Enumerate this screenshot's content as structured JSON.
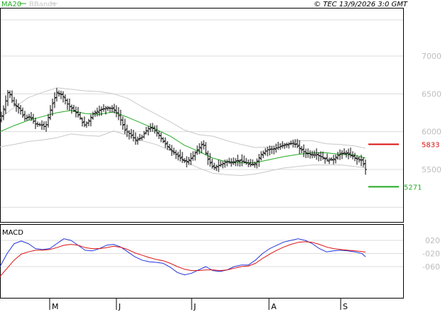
{
  "header": {
    "legend_ma": "MA20",
    "legend_bbands": "BBands",
    "copyright": "© TEC 13/9/2026 3:0 GMT"
  },
  "macd_panel": {
    "label": "MACD"
  },
  "colors": {
    "price_bars": "#000000",
    "ma20": "#22aa22",
    "bbands": "#c8c8c8",
    "macd": "#2233dd",
    "signal": "#dd1111",
    "resistance": "#dd1111",
    "support": "#22aa22",
    "grid": "#dcdcdc"
  },
  "chart_data": [
    {
      "type": "ohlc",
      "title": "",
      "x": [
        "M",
        "J",
        "J",
        "A",
        "S"
      ],
      "y_ticks": [
        "7000",
        "6500",
        "6000",
        "5500"
      ],
      "ylim": [
        5000,
        7250
      ],
      "grid": true,
      "indicators": [
        "MA20",
        "BBands"
      ],
      "levels": [
        {
          "name": "resistance",
          "label": "5833",
          "value": 5833
        },
        {
          "name": "support",
          "label": "5271",
          "value": 5271
        }
      ],
      "price_path": [
        [
          0,
          6150
        ],
        [
          5,
          6300
        ],
        [
          12,
          6550
        ],
        [
          18,
          6380
        ],
        [
          28,
          6300
        ],
        [
          34,
          6170
        ],
        [
          42,
          6200
        ],
        [
          50,
          6100
        ],
        [
          57,
          6090
        ],
        [
          64,
          6060
        ],
        [
          72,
          6320
        ],
        [
          80,
          6520
        ],
        [
          88,
          6480
        ],
        [
          96,
          6350
        ],
        [
          104,
          6280
        ],
        [
          112,
          6200
        ],
        [
          118,
          6080
        ],
        [
          124,
          6130
        ],
        [
          132,
          6250
        ],
        [
          140,
          6280
        ],
        [
          150,
          6320
        ],
        [
          160,
          6300
        ],
        [
          168,
          6200
        ],
        [
          176,
          6020
        ],
        [
          184,
          5960
        ],
        [
          192,
          5880
        ],
        [
          200,
          5930
        ],
        [
          208,
          6040
        ],
        [
          214,
          6050
        ],
        [
          222,
          5980
        ],
        [
          230,
          5870
        ],
        [
          238,
          5780
        ],
        [
          246,
          5720
        ],
        [
          254,
          5650
        ],
        [
          262,
          5600
        ],
        [
          270,
          5650
        ],
        [
          278,
          5760
        ],
        [
          286,
          5850
        ],
        [
          292,
          5650
        ],
        [
          300,
          5520
        ],
        [
          310,
          5560
        ],
        [
          318,
          5600
        ],
        [
          328,
          5600
        ],
        [
          336,
          5620
        ],
        [
          344,
          5600
        ],
        [
          352,
          5560
        ],
        [
          360,
          5580
        ],
        [
          368,
          5700
        ],
        [
          376,
          5760
        ],
        [
          384,
          5770
        ],
        [
          394,
          5800
        ],
        [
          404,
          5830
        ],
        [
          414,
          5850
        ],
        [
          422,
          5780
        ],
        [
          430,
          5720
        ],
        [
          438,
          5700
        ],
        [
          446,
          5700
        ],
        [
          454,
          5660
        ],
        [
          462,
          5620
        ],
        [
          470,
          5640
        ],
        [
          478,
          5700
        ],
        [
          486,
          5720
        ],
        [
          494,
          5690
        ],
        [
          502,
          5640
        ],
        [
          510,
          5620
        ],
        [
          515,
          5500
        ]
      ],
      "ma20_path": [
        [
          0,
          6000
        ],
        [
          20,
          6080
        ],
        [
          40,
          6150
        ],
        [
          60,
          6200
        ],
        [
          80,
          6250
        ],
        [
          100,
          6280
        ],
        [
          120,
          6240
        ],
        [
          140,
          6230
        ],
        [
          160,
          6260
        ],
        [
          180,
          6190
        ],
        [
          200,
          6110
        ],
        [
          220,
          6030
        ],
        [
          240,
          5940
        ],
        [
          260,
          5820
        ],
        [
          280,
          5740
        ],
        [
          300,
          5650
        ],
        [
          320,
          5600
        ],
        [
          340,
          5590
        ],
        [
          360,
          5590
        ],
        [
          380,
          5630
        ],
        [
          400,
          5670
        ],
        [
          420,
          5700
        ],
        [
          440,
          5720
        ],
        [
          460,
          5720
        ],
        [
          480,
          5700
        ],
        [
          500,
          5690
        ],
        [
          515,
          5650
        ]
      ],
      "bband_upper_path": [
        [
          0,
          6180
        ],
        [
          20,
          6320
        ],
        [
          40,
          6450
        ],
        [
          60,
          6520
        ],
        [
          80,
          6580
        ],
        [
          100,
          6560
        ],
        [
          120,
          6540
        ],
        [
          140,
          6530
        ],
        [
          160,
          6500
        ],
        [
          180,
          6440
        ],
        [
          200,
          6330
        ],
        [
          220,
          6230
        ],
        [
          240,
          6130
        ],
        [
          260,
          6020
        ],
        [
          280,
          5960
        ],
        [
          300,
          5940
        ],
        [
          320,
          5880
        ],
        [
          340,
          5830
        ],
        [
          360,
          5790
        ],
        [
          380,
          5800
        ],
        [
          400,
          5840
        ],
        [
          420,
          5880
        ],
        [
          440,
          5880
        ],
        [
          460,
          5840
        ],
        [
          480,
          5830
        ],
        [
          500,
          5810
        ],
        [
          515,
          5780
        ]
      ],
      "bband_lower_path": [
        [
          0,
          5800
        ],
        [
          20,
          5830
        ],
        [
          40,
          5870
        ],
        [
          60,
          5890
        ],
        [
          80,
          5920
        ],
        [
          100,
          5970
        ],
        [
          120,
          5950
        ],
        [
          140,
          5940
        ],
        [
          160,
          6010
        ],
        [
          180,
          5950
        ],
        [
          200,
          5880
        ],
        [
          220,
          5830
        ],
        [
          240,
          5750
        ],
        [
          260,
          5610
        ],
        [
          280,
          5520
        ],
        [
          300,
          5450
        ],
        [
          320,
          5430
        ],
        [
          340,
          5420
        ],
        [
          360,
          5440
        ],
        [
          380,
          5480
        ],
        [
          400,
          5520
        ],
        [
          420,
          5540
        ],
        [
          440,
          5560
        ],
        [
          460,
          5560
        ],
        [
          480,
          5560
        ],
        [
          500,
          5540
        ],
        [
          515,
          5520
        ]
      ]
    },
    {
      "type": "line",
      "title": "MACD",
      "y_ticks": [
        "020",
        "-020",
        "-060"
      ],
      "ylim": [
        -100,
        60
      ],
      "grid": true,
      "series": [
        {
          "name": "",
          "values": [
            [
              0,
              -60
            ],
            [
              10,
              -20
            ],
            [
              20,
              10
            ],
            [
              30,
              18
            ],
            [
              40,
              10
            ],
            [
              50,
              -5
            ],
            [
              60,
              -8
            ],
            [
              70,
              -5
            ],
            [
              80,
              10
            ],
            [
              90,
              25
            ],
            [
              100,
              20
            ],
            [
              110,
              5
            ],
            [
              120,
              -10
            ],
            [
              130,
              -12
            ],
            [
              140,
              -5
            ],
            [
              150,
              5
            ],
            [
              160,
              8
            ],
            [
              170,
              0
            ],
            [
              180,
              -15
            ],
            [
              190,
              -30
            ],
            [
              200,
              -40
            ],
            [
              210,
              -45
            ],
            [
              220,
              -47
            ],
            [
              230,
              -50
            ],
            [
              240,
              -62
            ],
            [
              250,
              -78
            ],
            [
              260,
              -85
            ],
            [
              270,
              -80
            ],
            [
              280,
              -70
            ],
            [
              290,
              -60
            ],
            [
              300,
              -72
            ],
            [
              310,
              -75
            ],
            [
              320,
              -70
            ],
            [
              330,
              -60
            ],
            [
              340,
              -55
            ],
            [
              350,
              -55
            ],
            [
              360,
              -40
            ],
            [
              370,
              -20
            ],
            [
              380,
              -5
            ],
            [
              390,
              5
            ],
            [
              400,
              15
            ],
            [
              410,
              20
            ],
            [
              420,
              25
            ],
            [
              430,
              20
            ],
            [
              440,
              10
            ],
            [
              450,
              -5
            ],
            [
              460,
              -15
            ],
            [
              470,
              -12
            ],
            [
              480,
              -10
            ],
            [
              490,
              -12
            ],
            [
              500,
              -15
            ],
            [
              510,
              -20
            ],
            [
              515,
              -30
            ]
          ]
        },
        {
          "name": "",
          "values": [
            [
              0,
              -90
            ],
            [
              10,
              -65
            ],
            [
              20,
              -40
            ],
            [
              30,
              -22
            ],
            [
              40,
              -15
            ],
            [
              50,
              -10
            ],
            [
              60,
              -10
            ],
            [
              70,
              -8
            ],
            [
              80,
              -2
            ],
            [
              90,
              5
            ],
            [
              100,
              8
            ],
            [
              110,
              5
            ],
            [
              120,
              -2
            ],
            [
              130,
              -5
            ],
            [
              140,
              -5
            ],
            [
              150,
              -2
            ],
            [
              160,
              2
            ],
            [
              170,
              -1
            ],
            [
              180,
              -8
            ],
            [
              190,
              -18
            ],
            [
              200,
              -25
            ],
            [
              210,
              -32
            ],
            [
              220,
              -38
            ],
            [
              230,
              -42
            ],
            [
              240,
              -50
            ],
            [
              250,
              -60
            ],
            [
              260,
              -68
            ],
            [
              270,
              -72
            ],
            [
              280,
              -72
            ],
            [
              290,
              -70
            ],
            [
              300,
              -70
            ],
            [
              310,
              -72
            ],
            [
              320,
              -70
            ],
            [
              330,
              -65
            ],
            [
              340,
              -60
            ],
            [
              350,
              -58
            ],
            [
              360,
              -50
            ],
            [
              370,
              -35
            ],
            [
              380,
              -22
            ],
            [
              390,
              -10
            ],
            [
              400,
              0
            ],
            [
              410,
              8
            ],
            [
              420,
              14
            ],
            [
              430,
              16
            ],
            [
              440,
              14
            ],
            [
              450,
              8
            ],
            [
              460,
              0
            ],
            [
              470,
              -5
            ],
            [
              480,
              -8
            ],
            [
              490,
              -10
            ],
            [
              500,
              -12
            ],
            [
              510,
              -14
            ],
            [
              515,
              -16
            ]
          ]
        }
      ]
    }
  ]
}
